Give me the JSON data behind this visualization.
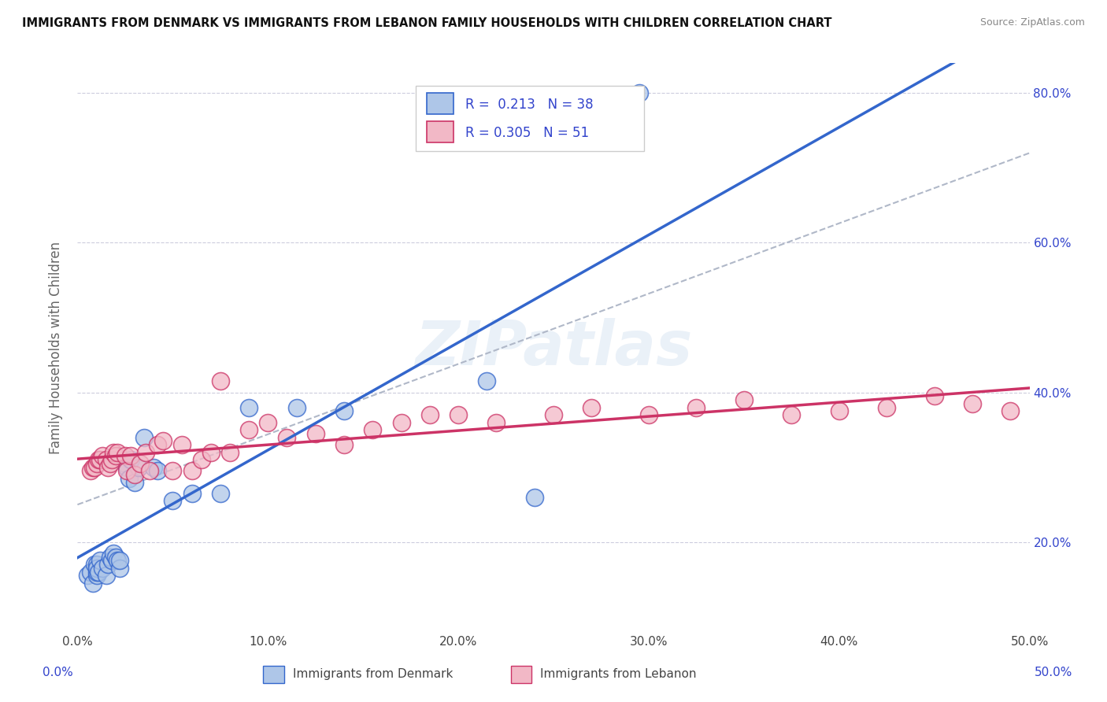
{
  "title": "IMMIGRANTS FROM DENMARK VS IMMIGRANTS FROM LEBANON FAMILY HOUSEHOLDS WITH CHILDREN CORRELATION CHART",
  "source": "Source: ZipAtlas.com",
  "ylabel": "Family Households with Children",
  "legend_label1": "Immigrants from Denmark",
  "legend_label2": "Immigrants from Lebanon",
  "R1": "0.213",
  "N1": "38",
  "R2": "0.305",
  "N2": "51",
  "xmin": 0.0,
  "xmax": 0.5,
  "ymin": 0.08,
  "ymax": 0.84,
  "color_denmark": "#aec6e8",
  "color_lebanon": "#f2b8c6",
  "color_R": "#3344cc",
  "trend_color_denmark": "#3366cc",
  "trend_color_lebanon": "#cc3366",
  "trend_color_diagonal": "#b0b8c8",
  "background_color": "#ffffff",
  "grid_color": "#ccccdd",
  "denmark_x": [
    0.005,
    0.007,
    0.008,
    0.009,
    0.01,
    0.01,
    0.01,
    0.01,
    0.011,
    0.012,
    0.013,
    0.015,
    0.016,
    0.017,
    0.018,
    0.019,
    0.02,
    0.021,
    0.022,
    0.022,
    0.025,
    0.026,
    0.027,
    0.028,
    0.03,
    0.032,
    0.035,
    0.04,
    0.042,
    0.05,
    0.06,
    0.075,
    0.09,
    0.115,
    0.14,
    0.215,
    0.24,
    0.295
  ],
  "denmark_y": [
    0.155,
    0.16,
    0.145,
    0.17,
    0.155,
    0.16,
    0.17,
    0.165,
    0.16,
    0.175,
    0.165,
    0.155,
    0.17,
    0.18,
    0.175,
    0.185,
    0.18,
    0.175,
    0.165,
    0.175,
    0.305,
    0.3,
    0.285,
    0.31,
    0.28,
    0.3,
    0.34,
    0.3,
    0.295,
    0.255,
    0.265,
    0.265,
    0.38,
    0.38,
    0.375,
    0.415,
    0.26,
    0.8
  ],
  "lebanon_x": [
    0.007,
    0.008,
    0.009,
    0.01,
    0.011,
    0.012,
    0.013,
    0.015,
    0.016,
    0.017,
    0.018,
    0.019,
    0.02,
    0.021,
    0.025,
    0.026,
    0.028,
    0.03,
    0.033,
    0.036,
    0.038,
    0.042,
    0.045,
    0.05,
    0.055,
    0.06,
    0.065,
    0.07,
    0.075,
    0.08,
    0.09,
    0.1,
    0.11,
    0.125,
    0.14,
    0.155,
    0.17,
    0.185,
    0.2,
    0.22,
    0.25,
    0.27,
    0.3,
    0.325,
    0.35,
    0.375,
    0.4,
    0.425,
    0.45,
    0.47,
    0.49
  ],
  "lebanon_y": [
    0.295,
    0.3,
    0.3,
    0.305,
    0.31,
    0.31,
    0.315,
    0.31,
    0.3,
    0.305,
    0.31,
    0.32,
    0.315,
    0.32,
    0.315,
    0.295,
    0.315,
    0.29,
    0.305,
    0.32,
    0.295,
    0.33,
    0.335,
    0.295,
    0.33,
    0.295,
    0.31,
    0.32,
    0.415,
    0.32,
    0.35,
    0.36,
    0.34,
    0.345,
    0.33,
    0.35,
    0.36,
    0.37,
    0.37,
    0.36,
    0.37,
    0.38,
    0.37,
    0.38,
    0.39,
    0.37,
    0.375,
    0.38,
    0.395,
    0.385,
    0.375
  ]
}
